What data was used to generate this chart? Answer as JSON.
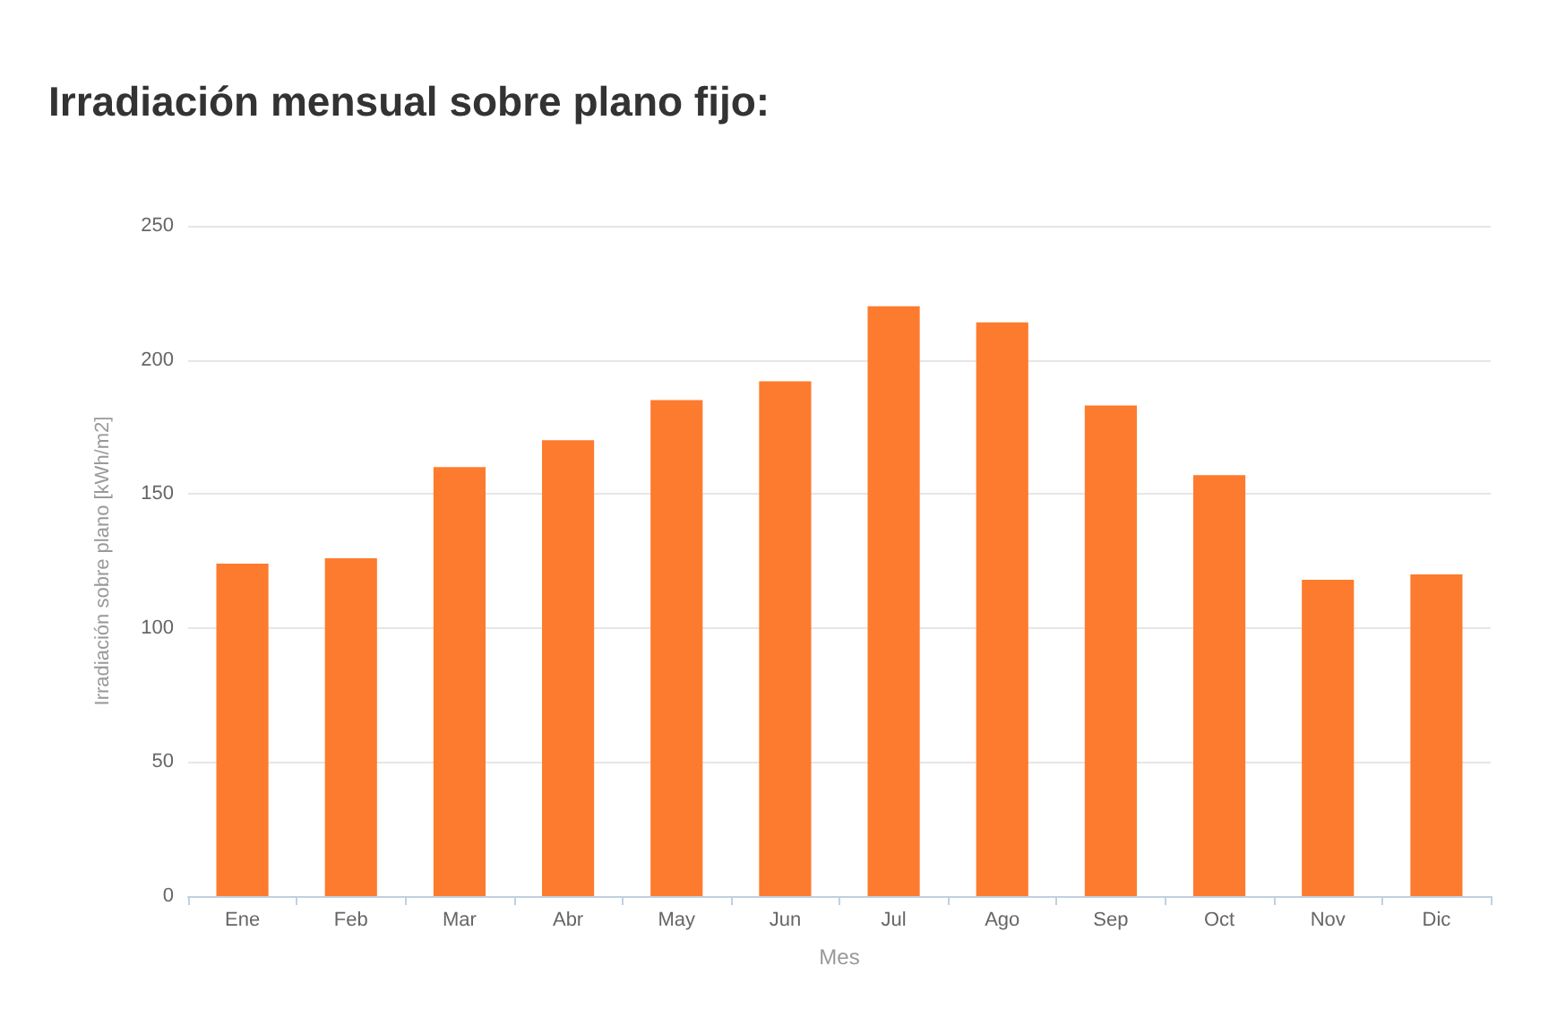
{
  "chart_data": {
    "type": "bar",
    "title": "Irradiación mensual sobre plano fijo:",
    "xlabel": "Mes",
    "ylabel": "Irradiación sobre plano [kWh/m2]",
    "categories": [
      "Ene",
      "Feb",
      "Mar",
      "Abr",
      "May",
      "Jun",
      "Jul",
      "Ago",
      "Sep",
      "Oct",
      "Nov",
      "Dic"
    ],
    "values": [
      124,
      126,
      160,
      170,
      185,
      192,
      220,
      214,
      183,
      157,
      118,
      120
    ],
    "color": "#fd7b2e",
    "ylim": [
      0,
      250
    ],
    "yticks": [
      0,
      50,
      100,
      150,
      200,
      250
    ],
    "grid": "y"
  }
}
